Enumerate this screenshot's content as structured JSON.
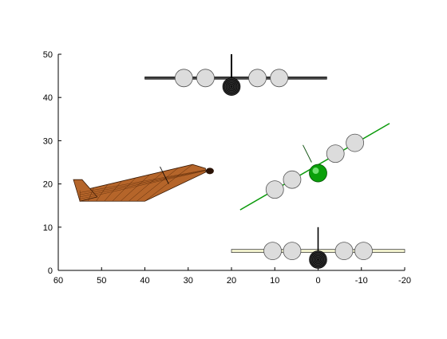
{
  "chart_data": {
    "type": "3d-model-views",
    "title": "",
    "xlabel": "",
    "ylabel": "",
    "xlim": [
      60,
      -20
    ],
    "ylim": [
      0,
      50
    ],
    "x_reversed": true,
    "grid": false,
    "legend": "none",
    "xticks": [
      "60",
      "50",
      "40",
      "30",
      "20",
      "10",
      "0",
      "-10",
      "-20"
    ],
    "yticks": [
      "0",
      "10",
      "20",
      "30",
      "40",
      "50"
    ],
    "views": [
      {
        "name": "side-view",
        "color": "#b5652a",
        "fuselage": [
          [
            55,
            16
          ],
          [
            40,
            16
          ],
          [
            29,
            24.5
          ],
          [
            26,
            23
          ]
        ],
        "tail_fin": [
          [
            56.5,
            21
          ],
          [
            54.5,
            21
          ],
          [
            51,
            17
          ],
          [
            55,
            16
          ]
        ]
      },
      {
        "name": "top-view",
        "color": "#000000",
        "wing_span": [
          40,
          -2
        ],
        "wing_y": 44.5,
        "fin_top": 50,
        "fuselage_nose": [
          20,
          42.5
        ],
        "engines": [
          {
            "x": 31,
            "y": 44.5
          },
          {
            "x": 26,
            "y": 44.5
          },
          {
            "x": 14,
            "y": 44.5
          },
          {
            "x": 9,
            "y": 44.5
          }
        ]
      },
      {
        "name": "rotated-view",
        "color": "#0a9a0a",
        "wing": [
          [
            18,
            14
          ],
          [
            -16.5,
            34
          ]
        ],
        "fin": [
          [
            3.5,
            29
          ],
          [
            1.5,
            25
          ]
        ],
        "fuselage_nose": [
          0,
          22.5
        ],
        "engines": [
          {
            "x": 10,
            "y": 18.7
          },
          {
            "x": 6,
            "y": 21
          },
          {
            "x": -4,
            "y": 27
          },
          {
            "x": -8.5,
            "y": 29.5
          }
        ]
      },
      {
        "name": "front-view",
        "color": "#000000",
        "wing_span": [
          20,
          -20
        ],
        "wing_y": 4.5,
        "wing_fill": "#efefcc",
        "fin_top": 10,
        "fuselage_nose": [
          0,
          2.5
        ],
        "engines": [
          {
            "x": 10.5,
            "y": 4.5
          },
          {
            "x": 6,
            "y": 4.5
          },
          {
            "x": -6,
            "y": 4.5
          },
          {
            "x": -10.5,
            "y": 4.5
          }
        ]
      }
    ]
  }
}
